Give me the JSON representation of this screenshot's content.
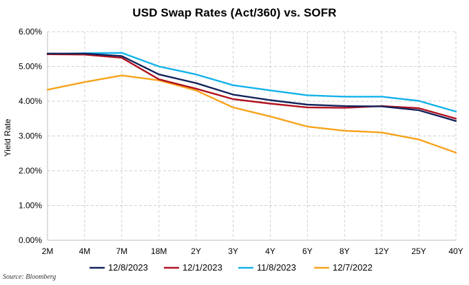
{
  "chart_data": {
    "type": "line",
    "title": "USD Swap Rates (Act/360) vs. SOFR",
    "ylabel": "Yield Rate",
    "xlabel": "",
    "categories": [
      "2M",
      "4M",
      "7M",
      "18M",
      "2Y",
      "3Y",
      "4Y",
      "6Y",
      "8Y",
      "12Y",
      "25Y",
      "40Y"
    ],
    "ylim": [
      0,
      6
    ],
    "yticks": [
      0,
      1,
      2,
      3,
      4,
      5,
      6
    ],
    "ytick_labels": [
      "0.00%",
      "1.00%",
      "2.00%",
      "3.00%",
      "4.00%",
      "5.00%",
      "6.00%"
    ],
    "grid": true,
    "legend_position": "bottom",
    "series": [
      {
        "name": "12/8/2023",
        "color": "#13235b",
        "values": [
          5.37,
          5.37,
          5.3,
          4.77,
          4.52,
          4.19,
          4.03,
          3.9,
          3.86,
          3.85,
          3.74,
          3.43
        ]
      },
      {
        "name": "12/1/2023",
        "color": "#b0111e",
        "values": [
          5.35,
          5.34,
          5.25,
          4.63,
          4.36,
          4.06,
          3.93,
          3.82,
          3.81,
          3.86,
          3.8,
          3.5
        ]
      },
      {
        "name": "11/8/2023",
        "color": "#12b2ea",
        "values": [
          5.35,
          5.38,
          5.39,
          5.0,
          4.77,
          4.46,
          4.31,
          4.17,
          4.13,
          4.13,
          4.01,
          3.7
        ]
      },
      {
        "name": "12/7/2022",
        "color": "#f7a21b",
        "values": [
          4.33,
          4.55,
          4.74,
          4.6,
          4.31,
          3.82,
          3.56,
          3.27,
          3.15,
          3.1,
          2.9,
          2.52
        ]
      }
    ]
  },
  "source": "Source: Bloomberg"
}
